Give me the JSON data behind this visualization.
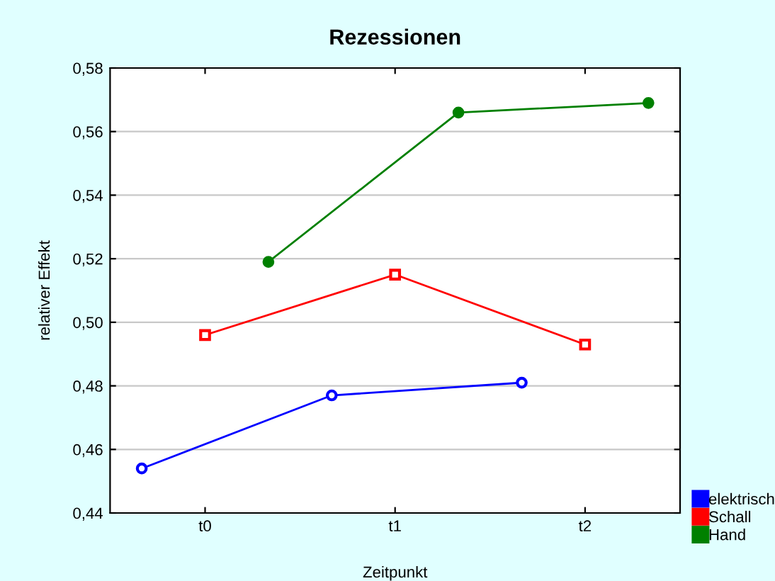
{
  "chart_data": {
    "type": "line",
    "title": "Rezessionen",
    "xlabel": "Zeitpunkt",
    "ylabel": "relativer Effekt",
    "categories": [
      null,
      "t0",
      null,
      null,
      "t1",
      null,
      null,
      "t2",
      null
    ],
    "ylim": [
      0.44,
      0.58
    ],
    "yticks": [
      {
        "value": 0.44,
        "label": "0,44"
      },
      {
        "value": 0.46,
        "label": "0,46"
      },
      {
        "value": 0.48,
        "label": "0,48"
      },
      {
        "value": 0.5,
        "label": "0,50"
      },
      {
        "value": 0.52,
        "label": "0,52"
      },
      {
        "value": 0.54,
        "label": "0,54"
      },
      {
        "value": 0.56,
        "label": "0,56"
      },
      {
        "value": 0.58,
        "label": "0,58"
      }
    ],
    "grid": "y",
    "legend": "bottom right",
    "series": [
      {
        "name": "elektrisch",
        "color": "#0000ff",
        "marker": "circle",
        "values": [
          0.454,
          null,
          null,
          0.477,
          null,
          null,
          0.481,
          null,
          null
        ]
      },
      {
        "name": "Schall",
        "color": "#ff0000",
        "marker": "square",
        "values": [
          null,
          0.496,
          null,
          null,
          0.515,
          null,
          null,
          0.493,
          null
        ]
      },
      {
        "name": "Hand",
        "color": "#008000",
        "marker": "circle",
        "values": [
          null,
          null,
          0.519,
          null,
          null,
          0.566,
          null,
          null,
          0.569
        ]
      }
    ]
  }
}
